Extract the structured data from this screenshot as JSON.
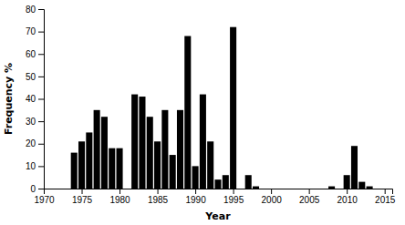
{
  "chart_data": {
    "type": "bar",
    "x": [
      1972,
      1973,
      1974,
      1975,
      1976,
      1977,
      1978,
      1979,
      1980,
      1981,
      1982,
      1983,
      1984,
      1985,
      1986,
      1987,
      1988,
      1989,
      1990,
      1991,
      1992,
      1993,
      1994,
      1995,
      1996,
      1997,
      1998,
      1999,
      2000,
      2001,
      2002,
      2003,
      2004,
      2005,
      2006,
      2007,
      2008,
      2009,
      2010,
      2011,
      2012,
      2013,
      2014
    ],
    "values": [
      0,
      0,
      16,
      21,
      25,
      35,
      32,
      18,
      18,
      0,
      42,
      41,
      32,
      21,
      35,
      15,
      35,
      68,
      10,
      42,
      21,
      4,
      6,
      72,
      0,
      6,
      1,
      0,
      0,
      0,
      0,
      0,
      0,
      0,
      0,
      0,
      1,
      0,
      6,
      19,
      3,
      1,
      0
    ],
    "color": "#000000",
    "xlabel": "Year",
    "ylabel": "Frequency %",
    "xlim": [
      1970,
      2016
    ],
    "ylim": [
      0,
      80
    ],
    "xticks": [
      1970,
      1975,
      1980,
      1985,
      1990,
      1995,
      2000,
      2005,
      2010,
      2015
    ],
    "yticks": [
      0,
      10,
      20,
      30,
      40,
      50,
      60,
      70,
      80
    ]
  }
}
